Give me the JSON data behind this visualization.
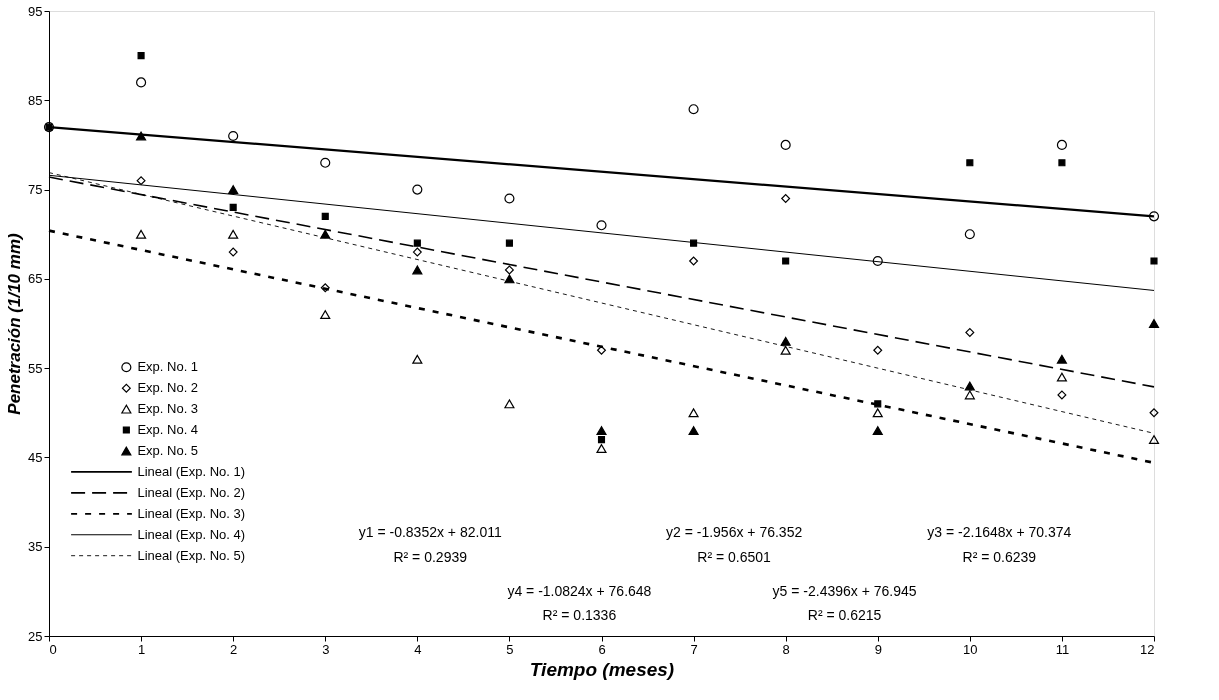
{
  "chart_data": {
    "type": "scatter",
    "xlabel": "Tiempo (meses)",
    "ylabel": "Penetración (1/10 mm)",
    "xlim": [
      0,
      12
    ],
    "xticks": [
      0,
      1,
      2,
      3,
      4,
      5,
      6,
      7,
      8,
      9,
      10,
      11,
      12
    ],
    "ylim": [
      25,
      95
    ],
    "yticks": [
      25,
      35,
      45,
      55,
      65,
      75,
      85,
      95
    ],
    "grid": false,
    "legend": "bottom left",
    "series": [
      {
        "name": "Exp. No. 1",
        "color": "#000000",
        "marker": "circle",
        "x": [
          0,
          1,
          2,
          3,
          4,
          5,
          6,
          7,
          8,
          9,
          10,
          11,
          12
        ],
        "values": [
          82,
          87,
          81,
          78,
          75,
          74,
          71,
          84,
          80,
          67,
          70,
          80,
          72
        ]
      },
      {
        "name": "Exp. No. 2",
        "color": "#000000",
        "marker": "diamond",
        "x": [
          1,
          2,
          3,
          4,
          5,
          6,
          7,
          8,
          9,
          10,
          11,
          12
        ],
        "values": [
          76,
          68,
          64,
          68,
          66,
          57,
          67,
          74,
          57,
          59,
          52,
          50
        ]
      },
      {
        "name": "Exp. No. 3",
        "color": "#000000",
        "marker": "triangle",
        "x": [
          1,
          2,
          3,
          4,
          5,
          6,
          7,
          8,
          9,
          10,
          11,
          12
        ],
        "values": [
          70,
          70,
          61,
          56,
          51,
          46,
          50,
          57,
          50,
          52,
          54,
          47
        ]
      },
      {
        "name": "Exp. No. 4",
        "color": "#000000",
        "marker": "square",
        "x": [
          0,
          1,
          2,
          3,
          4,
          5,
          6,
          7,
          8,
          9,
          10,
          11,
          12
        ],
        "values": [
          82,
          90,
          73,
          72,
          69,
          69,
          47,
          69,
          67,
          51,
          78,
          78,
          67
        ]
      },
      {
        "name": "Exp. No. 5",
        "color": "#000000",
        "marker": "triangle",
        "x": [
          1,
          2,
          3,
          4,
          5,
          6,
          7,
          8,
          9,
          10,
          11,
          12
        ],
        "values": [
          81,
          75,
          70,
          66,
          65,
          48,
          48,
          58,
          48,
          53,
          56,
          60
        ]
      },
      {
        "name": "Lineal (Exp. No. 1)",
        "type": "line",
        "color": "#000000",
        "line_style": "solid",
        "x": [
          0,
          12
        ],
        "values": [
          82.0,
          72.0
        ]
      },
      {
        "name": "Lineal (Exp. No. 2)",
        "type": "line",
        "color": "#000000",
        "line_style": "dashed",
        "x": [
          0,
          12
        ],
        "values": [
          76.4,
          52.9
        ]
      },
      {
        "name": "Lineal (Exp. No. 3)",
        "type": "line",
        "color": "#000000",
        "line_style": "dashed",
        "x": [
          0,
          12
        ],
        "values": [
          70.4,
          44.4
        ]
      },
      {
        "name": "Lineal (Exp. No. 4)",
        "type": "line",
        "color": "#000000",
        "line_style": "solid",
        "x": [
          0,
          12
        ],
        "values": [
          76.6,
          63.7
        ]
      },
      {
        "name": "Lineal (Exp. No. 5)",
        "type": "line",
        "color": "#000000",
        "line_style": "dotted",
        "x": [
          0,
          12
        ],
        "values": [
          76.9,
          47.7
        ]
      }
    ],
    "annotations": [
      "y1 = -0.8352x + 82.011",
      "R² = 0.2939",
      "y2 = -1.956x + 76.352",
      "R² = 0.6501",
      "y3 = -2.1648x + 70.374",
      "R² = 0.6239",
      "y4 = -1.0824x + 76.648",
      "R² = 0.1336",
      "y5 = -2.4396x + 76.945",
      "R² = 0.6215"
    ]
  }
}
